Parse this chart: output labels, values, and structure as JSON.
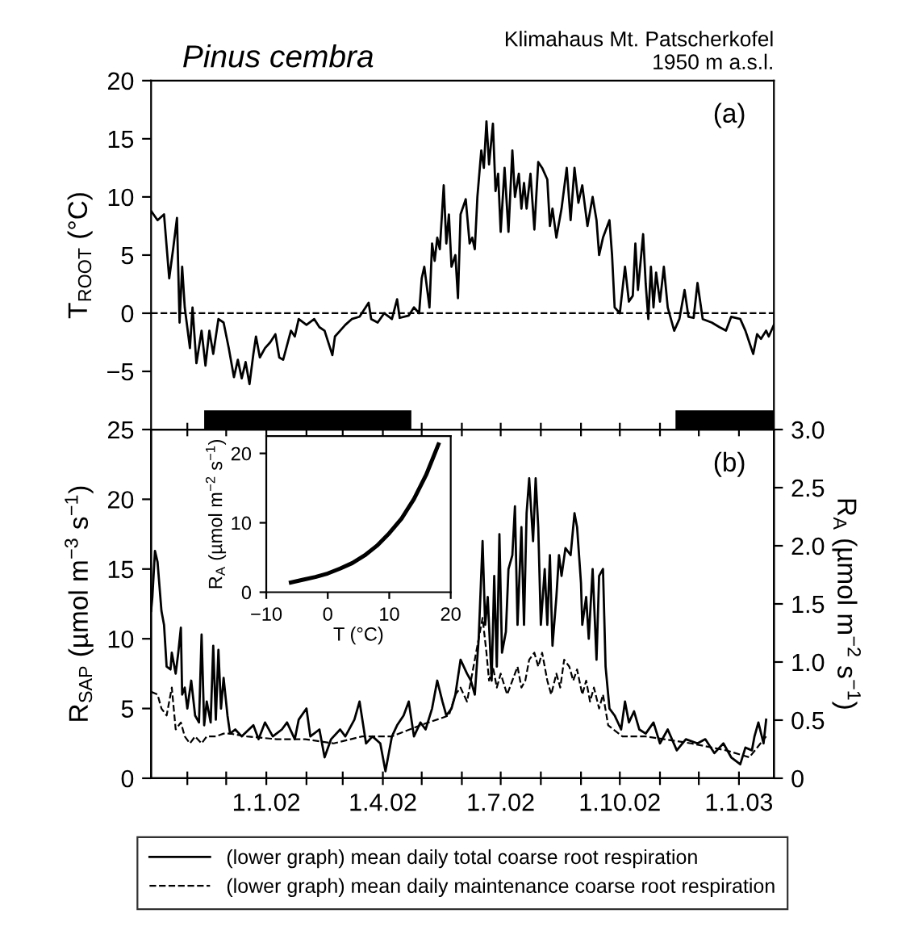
{
  "chart_data": [
    {
      "type": "line",
      "title": "Pinus cembra",
      "subtitle": "Klimahaus Mt. Patscherkofel\n1950 m a.s.l.",
      "ylabel": "T$_{ROOT}$ (°C)",
      "annotations": [
        "(a)"
      ],
      "tick_labels": "y",
      "xlim": [
        "2001-10-04",
        "2003-01-28"
      ],
      "ylim": [
        -10,
        20
      ],
      "yticks": [
        {
          "value": -5,
          "label": "−5"
        },
        0,
        5,
        10,
        15,
        20
      ],
      "ref_lines": [
        {
          "axis": "y",
          "value": 0,
          "line_style": "dashed",
          "color": "#000000"
        }
      ],
      "bands": [
        {
          "axis": "x",
          "from": "2001-11-14",
          "to": "2002-04-23",
          "color": "#000000"
        },
        {
          "axis": "x",
          "from": "2002-11-13",
          "to": "2003-01-28",
          "color": "#000000"
        }
      ],
      "series": [
        {
          "color": "#000000",
          "line_style": "solid",
          "x": [
            "2001-10-04",
            "2001-10-09",
            "2001-10-14",
            "2001-10-18",
            "2001-10-21",
            "2001-10-24",
            "2001-10-26",
            "2001-10-28",
            "2001-10-30",
            "2001-11-03",
            "2001-11-05",
            "2001-11-08",
            "2001-11-12",
            "2001-11-15",
            "2001-11-18",
            "2001-11-21",
            "2001-11-25",
            "2001-11-29",
            "2001-12-03",
            "2001-12-07",
            "2001-12-10",
            "2001-12-13",
            "2001-12-16",
            "2001-12-19",
            "2001-12-22",
            "2001-12-24",
            "2001-12-27",
            "2001-12-31",
            "2002-01-04",
            "2002-01-08",
            "2002-01-11",
            "2002-01-14",
            "2002-01-20",
            "2002-01-23",
            "2002-01-26",
            "2002-02-01",
            "2002-02-07",
            "2002-02-11",
            "2002-02-15",
            "2002-02-21",
            "2002-02-23",
            "2002-02-27",
            "2002-03-03",
            "2002-03-08",
            "2002-03-14",
            "2002-03-21",
            "2002-03-23",
            "2002-03-28",
            "2002-04-02",
            "2002-04-08",
            "2002-04-12",
            "2002-04-14",
            "2002-04-21",
            "2002-04-25",
            "2002-04-29",
            "2002-05-01",
            "2002-05-03",
            "2002-05-07",
            "2002-05-09",
            "2002-05-11",
            "2002-05-13",
            "2002-05-15",
            "2002-05-18",
            "2002-05-20",
            "2002-05-22",
            "2002-05-24",
            "2002-05-27",
            "2002-05-29",
            "2002-05-31",
            "2002-06-04",
            "2002-06-07",
            "2002-06-09",
            "2002-06-11",
            "2002-06-13",
            "2002-06-16",
            "2002-06-18",
            "2002-06-20",
            "2002-06-22",
            "2002-06-25",
            "2002-06-27",
            "2002-06-29",
            "2002-07-01",
            "2002-07-04",
            "2002-07-07",
            "2002-07-10",
            "2002-07-12",
            "2002-07-15",
            "2002-07-17",
            "2002-07-19",
            "2002-07-21",
            "2002-07-24",
            "2002-07-27",
            "2002-07-30",
            "2002-08-02",
            "2002-08-06",
            "2002-08-08",
            "2002-08-10",
            "2002-08-13",
            "2002-08-17",
            "2002-08-21",
            "2002-08-24",
            "2002-08-27",
            "2002-08-30",
            "2002-09-02",
            "2002-09-06",
            "2002-09-10",
            "2002-09-13",
            "2002-09-15",
            "2002-09-18",
            "2002-09-23",
            "2002-09-25",
            "2002-09-27",
            "2002-10-01",
            "2002-10-05",
            "2002-10-08",
            "2002-10-11",
            "2002-10-13",
            "2002-10-15",
            "2002-10-19",
            "2002-10-21",
            "2002-10-23",
            "2002-10-25",
            "2002-10-27",
            "2002-10-29",
            "2002-11-01",
            "2002-11-04",
            "2002-11-07",
            "2002-11-12",
            "2002-11-16",
            "2002-11-20",
            "2002-11-23",
            "2002-11-27",
            "2002-11-30",
            "2002-12-04",
            "2002-12-11",
            "2002-12-17",
            "2002-12-22",
            "2002-12-26",
            "2003-01-02",
            "2003-01-06",
            "2003-01-09",
            "2003-01-12",
            "2003-01-15",
            "2003-01-18",
            "2003-01-22",
            "2003-01-24",
            "2003-01-28"
          ],
          "values": [
            8.8,
            8.0,
            8.5,
            3.0,
            5.5,
            8.2,
            -0.8,
            4.0,
            0.5,
            -3.0,
            0.5,
            -4.3,
            -1.5,
            -4.5,
            -1.5,
            -3.5,
            -0.5,
            -0.8,
            -3.0,
            -5.5,
            -4.0,
            -5.6,
            -4.2,
            -6.1,
            -3.5,
            -2.0,
            -3.8,
            -3.0,
            -2.5,
            -1.8,
            -3.8,
            -4.0,
            -1.5,
            -2.0,
            -0.5,
            -1.0,
            -0.5,
            -1.2,
            -1.5,
            -3.6,
            -2.0,
            -1.5,
            -1.0,
            -0.5,
            -0.3,
            0.9,
            -0.5,
            -0.8,
            0.0,
            -0.5,
            1.2,
            -0.4,
            -0.2,
            0.5,
            0.0,
            3.0,
            4.0,
            0.5,
            6.0,
            4.5,
            6.5,
            5.5,
            11.0,
            6.0,
            8.5,
            4.0,
            5.0,
            1.3,
            8.5,
            9.8,
            6.0,
            6.5,
            5.5,
            10.0,
            14.0,
            12.5,
            16.5,
            12.8,
            16.3,
            10.5,
            12.0,
            7.0,
            12.5,
            7.0,
            14.0,
            10.0,
            12.0,
            9.0,
            11.2,
            9.0,
            12.0,
            7.2,
            13.0,
            12.5,
            11.5,
            7.5,
            9.0,
            6.5,
            9.0,
            12.5,
            8.0,
            12.5,
            9.5,
            11.0,
            7.5,
            10.0,
            8.0,
            5.0,
            6.5,
            8.0,
            5.0,
            0.5,
            0.0,
            4.0,
            1.0,
            1.5,
            6.0,
            2.0,
            6.8,
            2.5,
            -0.5,
            4.0,
            0.5,
            3.5,
            1.0,
            4.0,
            0.5,
            -1.5,
            -0.5,
            2.0,
            -0.3,
            -0.4,
            2.6,
            -0.5,
            -0.8,
            -1.2,
            -1.5,
            -0.3,
            -0.5,
            -1.5,
            -2.5,
            -3.5,
            -1.8,
            -2.2,
            -1.5,
            -2.0,
            -1.0
          ]
        }
      ]
    },
    {
      "type": "line",
      "ylabel": "R$_{SAP}$ (µmol m$^{−3}$ s$^{−1}$)",
      "y2label": "R$_{A}$ (µmol m$^{−2}$ s$^{−1}$)",
      "annotations": [
        "(b)"
      ],
      "legend": "bottom",
      "xlim": [
        "2001-10-04",
        "2003-01-28"
      ],
      "xticks": [
        {
          "value": "2001-11-01",
          "label": null
        },
        {
          "value": "2001-12-01",
          "label": null
        },
        {
          "value": "2002-01-01",
          "label": "1.1.02"
        },
        {
          "value": "2002-02-01",
          "label": null
        },
        {
          "value": "2002-03-01",
          "label": null
        },
        {
          "value": "2002-04-01",
          "label": "1.4.02"
        },
        {
          "value": "2002-05-01",
          "label": null
        },
        {
          "value": "2002-06-01",
          "label": null
        },
        {
          "value": "2002-07-01",
          "label": "1.7.02"
        },
        {
          "value": "2002-08-01",
          "label": null
        },
        {
          "value": "2002-09-01",
          "label": null
        },
        {
          "value": "2002-10-01",
          "label": "1.10.02"
        },
        {
          "value": "2002-11-01",
          "label": null
        },
        {
          "value": "2002-12-01",
          "label": null
        },
        {
          "value": "2003-01-01",
          "label": "1.1.03"
        }
      ],
      "ylim": [
        0,
        25
      ],
      "yticks": [
        0,
        5,
        10,
        15,
        20,
        25
      ],
      "y2lim": [
        0,
        3.0
      ],
      "y2ticks": [
        0,
        0.5,
        {
          "value": 1.0,
          "label": "1.0"
        },
        1.5,
        {
          "value": 2.0,
          "label": "2.0"
        },
        2.5,
        {
          "value": 3.0,
          "label": "3.0"
        }
      ],
      "series": [
        {
          "name": "(lower graph) mean daily total coarse root respiration",
          "color": "#000000",
          "line_style": "solid",
          "x": [
            "2001-10-04",
            "2001-10-05",
            "2001-10-07",
            "2001-10-09",
            "2001-10-12",
            "2001-10-14",
            "2001-10-16",
            "2001-10-19",
            "2001-10-20",
            "2001-10-23",
            "2001-10-25",
            "2001-10-27",
            "2001-10-28",
            "2001-10-30",
            "2001-11-01",
            "2001-11-04",
            "2001-11-07",
            "2001-11-10",
            "2001-11-12",
            "2001-11-14",
            "2001-11-16",
            "2001-11-19",
            "2001-11-21",
            "2001-11-23",
            "2001-11-25",
            "2001-11-27",
            "2001-11-29",
            "2001-12-02",
            "2001-12-04",
            "2001-12-08",
            "2001-12-13",
            "2001-12-22",
            "2001-12-26",
            "2001-12-31",
            "2002-01-06",
            "2002-01-13",
            "2002-01-17",
            "2002-01-23",
            "2002-01-26",
            "2002-02-01",
            "2002-02-04",
            "2002-02-11",
            "2002-02-15",
            "2002-02-20",
            "2002-02-27",
            "2002-03-03",
            "2002-03-10",
            "2002-03-14",
            "2002-03-19",
            "2002-03-24",
            "2002-03-30",
            "2002-04-03",
            "2002-04-08",
            "2002-04-12",
            "2002-04-17",
            "2002-04-21",
            "2002-04-25",
            "2002-04-30",
            "2002-05-04",
            "2002-05-09",
            "2002-05-13",
            "2002-05-17",
            "2002-05-20",
            "2002-05-24",
            "2002-05-27",
            "2002-05-31",
            "2002-06-05",
            "2002-06-08",
            "2002-06-11",
            "2002-06-14",
            "2002-06-17",
            "2002-06-19",
            "2002-06-21",
            "2002-06-24",
            "2002-06-26",
            "2002-06-28",
            "2002-06-30",
            "2002-07-02",
            "2002-07-05",
            "2002-07-07",
            "2002-07-10",
            "2002-07-12",
            "2002-07-14",
            "2002-07-17",
            "2002-07-19",
            "2002-07-21",
            "2002-07-23",
            "2002-07-26",
            "2002-07-28",
            "2002-07-30",
            "2002-08-01",
            "2002-08-04",
            "2002-08-06",
            "2002-08-08",
            "2002-08-10",
            "2002-08-13",
            "2002-08-15",
            "2002-08-17",
            "2002-08-20",
            "2002-08-24",
            "2002-08-27",
            "2002-08-29",
            "2002-09-01",
            "2002-09-02",
            "2002-09-05",
            "2002-09-07",
            "2002-09-10",
            "2002-09-13",
            "2002-09-15",
            "2002-09-18",
            "2002-09-20",
            "2002-09-23",
            "2002-09-27",
            "2002-10-02",
            "2002-10-05",
            "2002-10-08",
            "2002-10-12",
            "2002-10-16",
            "2002-10-21",
            "2002-10-27",
            "2002-11-01",
            "2002-11-07",
            "2002-11-14",
            "2002-11-21",
            "2002-11-30",
            "2002-12-06",
            "2002-12-13",
            "2002-12-20",
            "2002-12-26",
            "2003-01-02",
            "2003-01-06",
            "2003-01-11",
            "2003-01-13",
            "2003-01-16",
            "2003-01-20",
            "2003-01-22"
          ],
          "values": [
            12.0,
            13.0,
            16.3,
            15.5,
            12.0,
            11.0,
            8.0,
            7.8,
            9.0,
            7.5,
            9.0,
            10.8,
            6.0,
            6.5,
            5.0,
            7.0,
            4.5,
            4.0,
            10.3,
            3.8,
            5.5,
            4.0,
            9.5,
            4.2,
            9.2,
            5.0,
            7.2,
            4.5,
            3.2,
            3.5,
            3.0,
            3.8,
            2.8,
            4.0,
            3.0,
            3.5,
            4.0,
            2.8,
            4.2,
            5.0,
            3.0,
            3.5,
            1.5,
            2.8,
            3.5,
            3.0,
            4.2,
            5.5,
            2.5,
            3.0,
            2.5,
            0.5,
            3.0,
            3.8,
            4.5,
            5.5,
            3.0,
            4.0,
            3.5,
            5.0,
            7.0,
            5.5,
            4.5,
            5.0,
            6.0,
            8.5,
            7.5,
            7.0,
            6.0,
            10.0,
            17.0,
            11.0,
            13.0,
            7.0,
            14.5,
            8.0,
            17.5,
            9.0,
            10.5,
            15.0,
            16.0,
            19.5,
            11.0,
            18.0,
            11.0,
            19.0,
            21.5,
            17.0,
            21.5,
            18.0,
            11.0,
            15.0,
            11.0,
            16.0,
            9.5,
            13.0,
            16.0,
            14.5,
            16.5,
            16.0,
            19.0,
            18.0,
            14.0,
            11.0,
            13.0,
            10.0,
            15.0,
            8.5,
            14.5,
            15.0,
            8.0,
            5.0,
            4.5,
            3.5,
            5.5,
            4.0,
            4.8,
            3.5,
            3.2,
            4.0,
            2.5,
            3.5,
            2.0,
            2.8,
            2.5,
            2.8,
            1.8,
            2.5,
            1.5,
            1.0,
            2.2,
            2.0,
            3.0,
            4.0,
            2.5,
            4.2
          ]
        },
        {
          "name": "(lower graph) mean daily maintenance coarse root respiration",
          "color": "#000000",
          "line_style": "dashed",
          "x": [
            "2001-10-04",
            "2001-10-09",
            "2001-10-12",
            "2001-10-16",
            "2001-10-20",
            "2001-10-23",
            "2001-10-27",
            "2001-10-30",
            "2001-11-03",
            "2001-11-07",
            "2001-11-12",
            "2001-11-16",
            "2001-11-23",
            "2001-11-29",
            "2001-12-04",
            "2001-12-17",
            "2002-01-09",
            "2002-01-31",
            "2002-02-22",
            "2002-03-16",
            "2002-04-08",
            "2002-04-30",
            "2002-05-22",
            "2002-05-27",
            "2002-05-31",
            "2002-06-05",
            "2002-06-08",
            "2002-06-11",
            "2002-06-14",
            "2002-06-17",
            "2002-06-20",
            "2002-06-22",
            "2002-06-25",
            "2002-06-28",
            "2002-07-01",
            "2002-07-06",
            "2002-07-10",
            "2002-07-14",
            "2002-07-17",
            "2002-07-20",
            "2002-07-23",
            "2002-07-27",
            "2002-07-30",
            "2002-08-02",
            "2002-08-06",
            "2002-08-09",
            "2002-08-13",
            "2002-08-16",
            "2002-08-19",
            "2002-08-23",
            "2002-08-26",
            "2002-08-29",
            "2002-09-02",
            "2002-09-05",
            "2002-09-08",
            "2002-09-11",
            "2002-09-15",
            "2002-09-18",
            "2002-09-22",
            "2002-09-26",
            "2002-10-03",
            "2002-10-21",
            "2002-11-25",
            "2002-12-22",
            "2003-01-09",
            "2003-01-22"
          ],
          "values": [
            6.2,
            6.0,
            5.0,
            4.5,
            6.5,
            3.5,
            4.0,
            3.0,
            2.5,
            3.0,
            2.5,
            3.0,
            3.0,
            3.2,
            3.2,
            3.0,
            2.8,
            2.8,
            2.5,
            3.0,
            3.0,
            3.8,
            4.5,
            6.0,
            6.5,
            5.5,
            7.0,
            8.5,
            10.0,
            11.5,
            9.0,
            7.0,
            8.0,
            6.5,
            7.5,
            6.0,
            7.0,
            8.0,
            6.5,
            7.0,
            8.5,
            9.0,
            8.0,
            9.0,
            7.0,
            6.0,
            7.5,
            6.5,
            8.5,
            8.0,
            7.0,
            7.8,
            6.0,
            7.0,
            5.5,
            6.5,
            5.0,
            6.0,
            3.8,
            3.5,
            3.0,
            3.0,
            2.5,
            2.0,
            1.5,
            3.0
          ]
        }
      ]
    },
    {
      "type": "line",
      "xlabel": "T (°C)",
      "ylabel": "R$_{A}$ (µmol m$^{−2}$ s$^{−1}$)",
      "xlim": [
        -10,
        20
      ],
      "xticks": [
        {
          "value": -10,
          "label": "−10"
        },
        0,
        10,
        20
      ],
      "ylim": [
        0,
        22.5
      ],
      "yticks": [
        0,
        10,
        20
      ],
      "series": [
        {
          "color": "#000000",
          "line_style": "solid",
          "x": [
            -6,
            -4,
            -2,
            0,
            2,
            4,
            6,
            8,
            10,
            12,
            14,
            16,
            18
          ],
          "values": [
            1.4,
            1.8,
            2.2,
            2.7,
            3.4,
            4.2,
            5.3,
            6.7,
            8.5,
            10.6,
            13.4,
            16.9,
            21.3
          ]
        }
      ]
    }
  ]
}
